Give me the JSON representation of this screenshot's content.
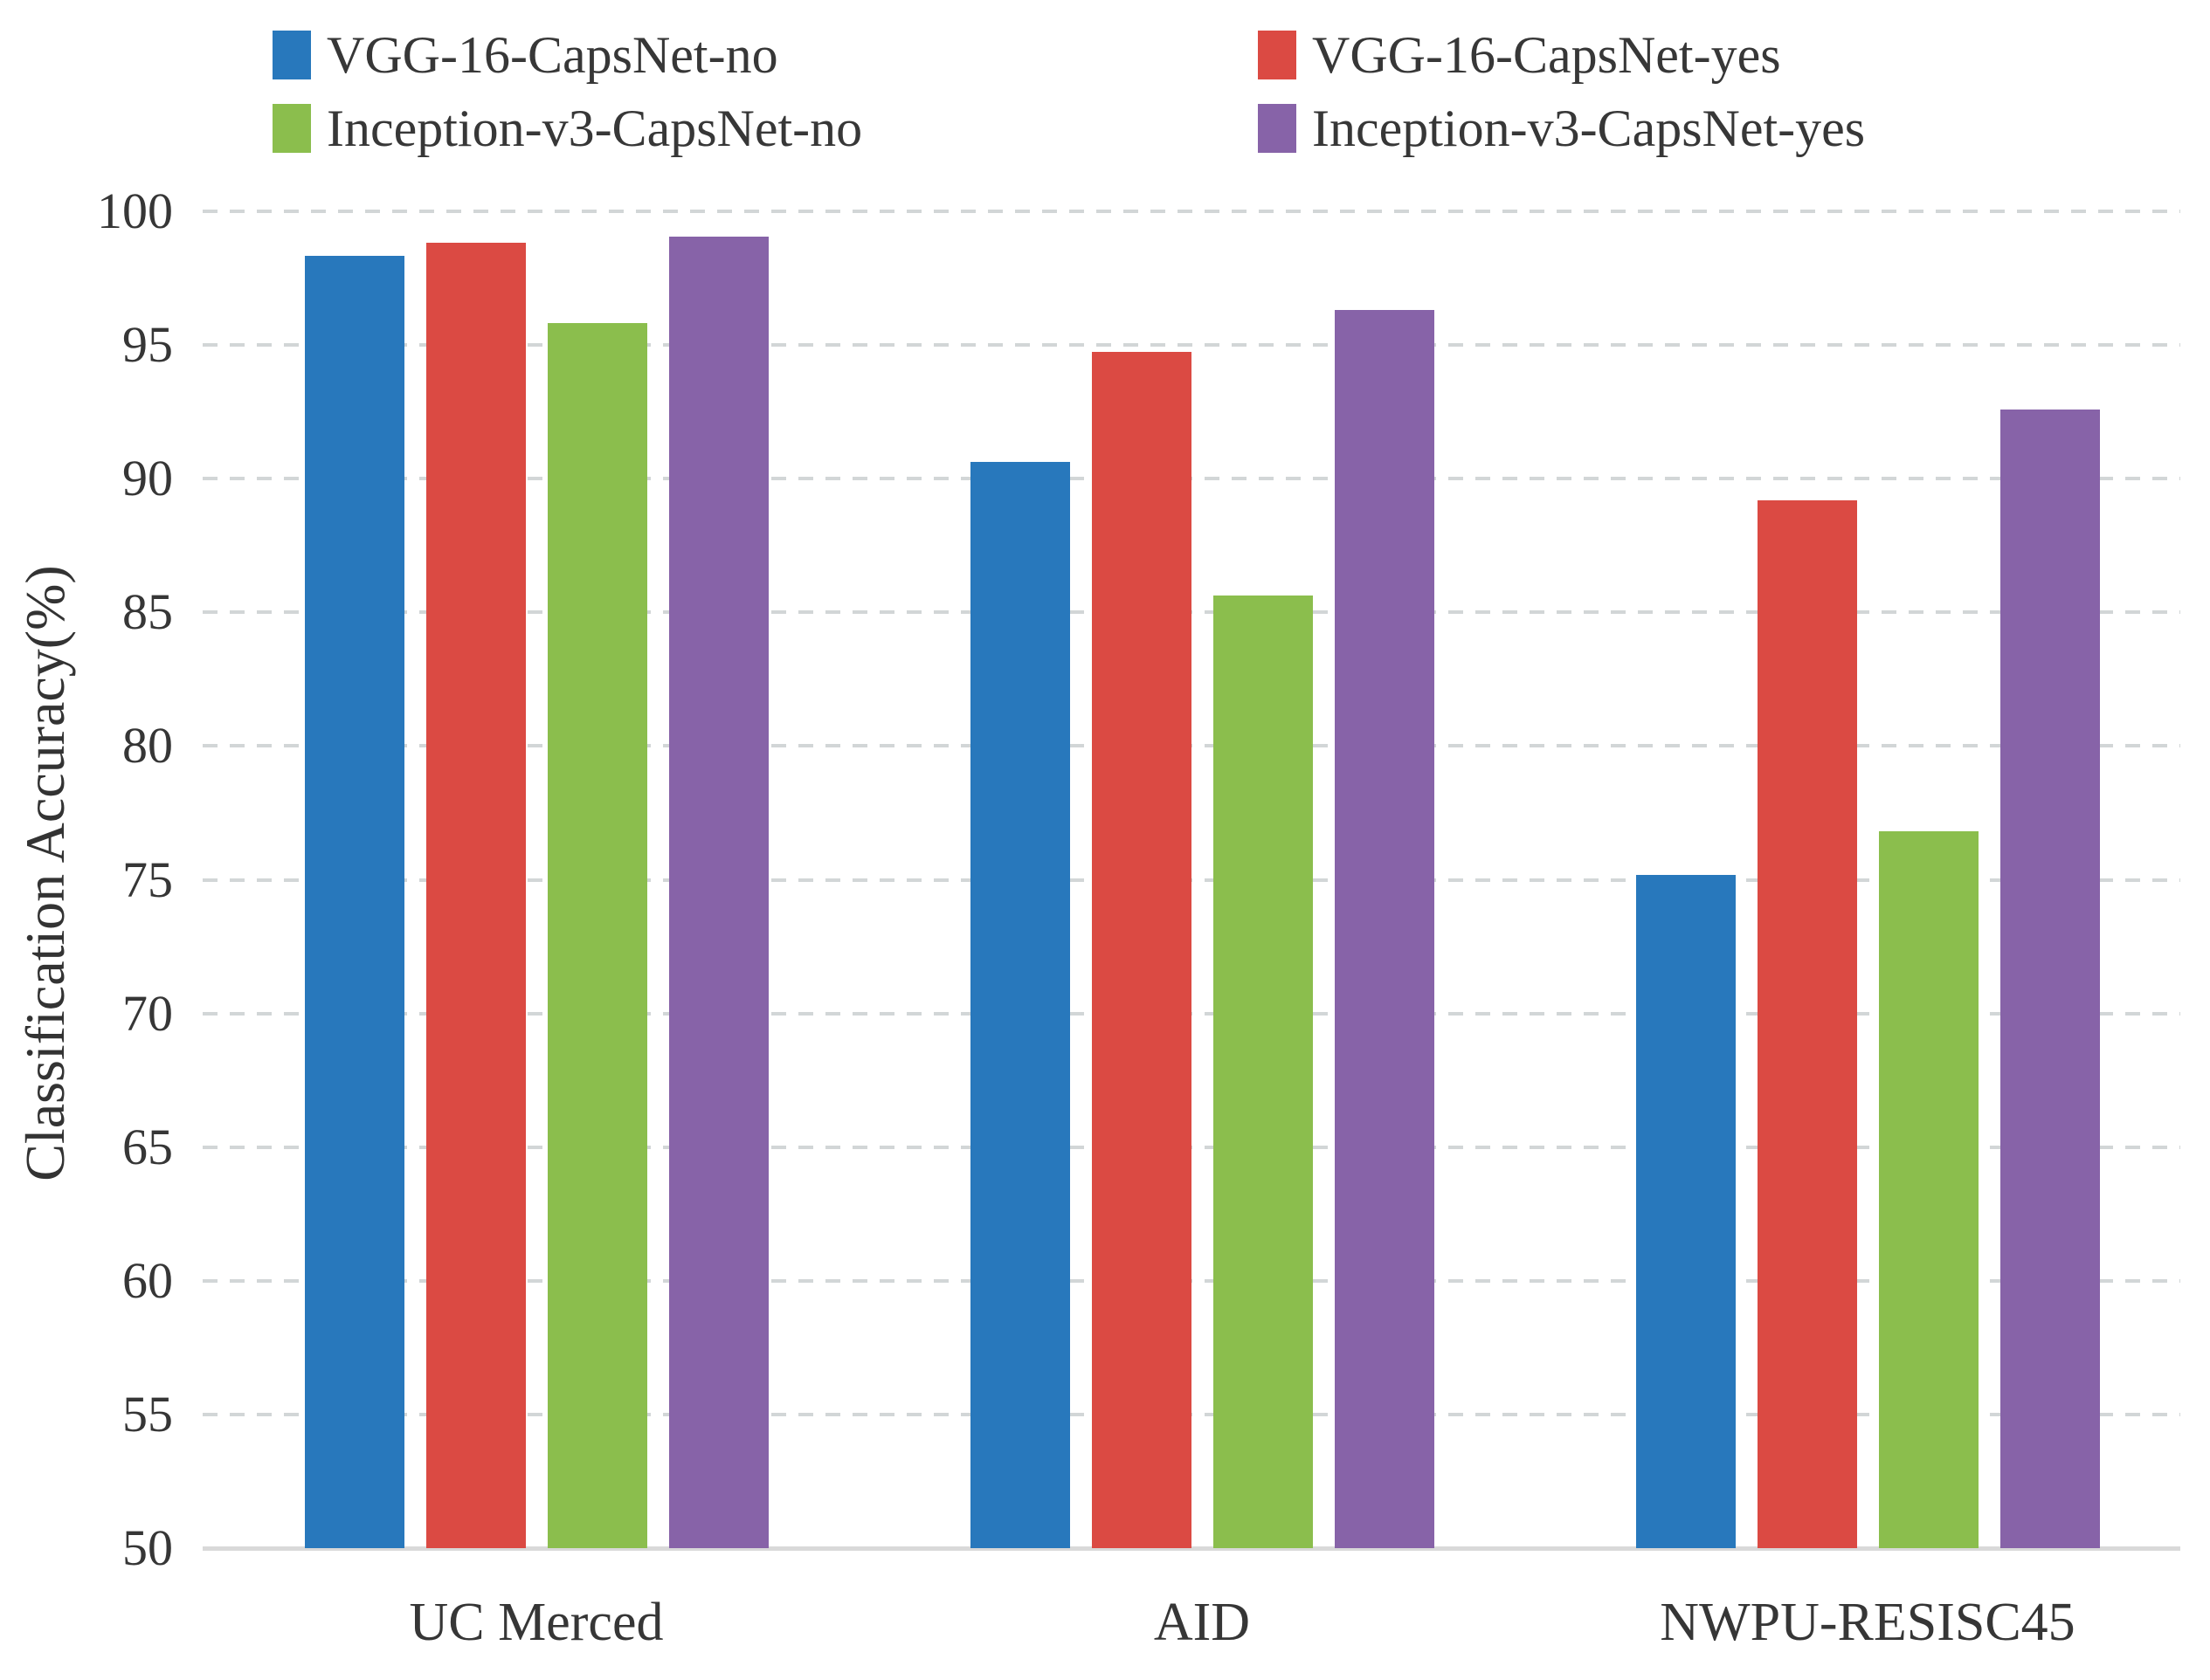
{
  "chart_data": {
    "type": "bar",
    "title": "",
    "xlabel": "",
    "ylabel": "Classification Accuracy(%)",
    "ylim": [
      50,
      100
    ],
    "yticks": [
      50,
      55,
      60,
      65,
      70,
      75,
      80,
      85,
      90,
      95,
      100
    ],
    "grid": "horizontal dashed gridlines, light gray",
    "legend_position": "top, two columns",
    "categories": [
      "UC Merced",
      "AID",
      "NWPU-RESISC45"
    ],
    "series": [
      {
        "name": "VGG-16-CapsNet-no",
        "color": "#2878BC",
        "values": [
          98.33,
          90.63,
          75.19
        ]
      },
      {
        "name": "VGG-16-CapsNet-yes",
        "color": "#DB4A43",
        "values": [
          98.81,
          94.74,
          89.18
        ]
      },
      {
        "name": "Inception-v3-CapsNet-no",
        "color": "#8BBE4D",
        "values": [
          95.81,
          85.62,
          76.8
        ]
      },
      {
        "name": "Inception-v3-CapsNet-yes",
        "color": "#8763A8",
        "values": [
          99.05,
          96.32,
          92.6
        ]
      }
    ]
  }
}
